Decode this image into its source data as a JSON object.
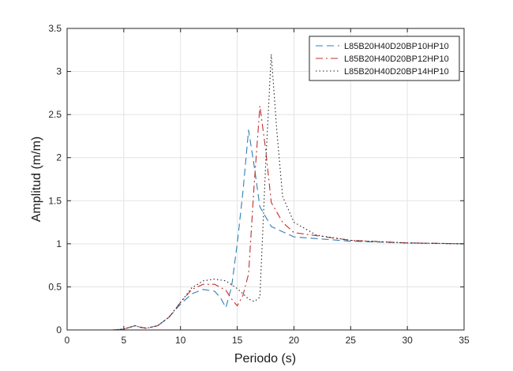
{
  "chart_data": {
    "type": "line",
    "title": "",
    "xlabel": "Periodo (s)",
    "ylabel": "Amplitud (m/m)",
    "xlim": [
      0,
      35
    ],
    "ylim": [
      0,
      3.5
    ],
    "xticks": [
      0,
      5,
      10,
      15,
      20,
      25,
      30,
      35
    ],
    "yticks": [
      0,
      0.5,
      1,
      1.5,
      2,
      2.5,
      3,
      3.5
    ],
    "xtick_labels": [
      "0",
      "5",
      "10",
      "15",
      "20",
      "25",
      "30",
      "35"
    ],
    "ytick_labels": [
      "0",
      "0.5",
      "1",
      "1.5",
      "2",
      "2.5",
      "3",
      "3.5"
    ],
    "grid": true,
    "legend_position": "top-right",
    "series": [
      {
        "name": "L85B20H40D20BP10HP10",
        "color": "#2e7fb8",
        "dash": "dashed",
        "x": [
          2.5,
          4,
          5,
          5.5,
          6,
          6.5,
          7,
          8,
          9,
          10,
          11,
          12,
          13,
          13.5,
          14,
          14.5,
          15,
          15.5,
          16,
          16.5,
          17,
          18,
          20,
          25,
          30,
          35
        ],
        "y": [
          0,
          0,
          0.01,
          0.03,
          0.05,
          0.03,
          0.02,
          0.05,
          0.15,
          0.3,
          0.42,
          0.47,
          0.45,
          0.38,
          0.26,
          0.5,
          1.0,
          1.6,
          2.32,
          1.9,
          1.43,
          1.2,
          1.08,
          1.03,
          1.01,
          1.0
        ]
      },
      {
        "name": "L85B20H40D20BP12HP10",
        "color": "#c42f2f",
        "dash": "dashdot",
        "x": [
          2.5,
          4,
          5,
          5.5,
          6,
          6.5,
          7,
          8,
          9,
          10,
          11,
          12,
          13,
          14,
          14.5,
          15,
          15.5,
          16,
          16.5,
          17,
          17.5,
          18,
          19,
          20,
          25,
          30,
          35
        ],
        "y": [
          0,
          0,
          0.01,
          0.03,
          0.05,
          0.03,
          0.02,
          0.05,
          0.15,
          0.32,
          0.47,
          0.53,
          0.53,
          0.46,
          0.36,
          0.28,
          0.4,
          0.65,
          1.7,
          2.6,
          2.1,
          1.48,
          1.25,
          1.13,
          1.04,
          1.01,
          1.0
        ]
      },
      {
        "name": "L85B20H40D20BP14HP10",
        "color": "#222222",
        "dash": "dotted",
        "x": [
          2.5,
          4,
          5,
          5.5,
          6,
          6.5,
          7,
          8,
          9,
          10,
          11,
          12,
          13,
          14,
          15,
          16,
          16.5,
          17,
          17.5,
          18,
          18.5,
          19,
          20,
          22,
          25,
          30,
          35
        ],
        "y": [
          0,
          0,
          0.01,
          0.03,
          0.05,
          0.03,
          0.02,
          0.05,
          0.15,
          0.32,
          0.49,
          0.57,
          0.59,
          0.57,
          0.48,
          0.36,
          0.33,
          0.38,
          1.9,
          3.2,
          2.3,
          1.55,
          1.25,
          1.1,
          1.04,
          1.01,
          1.0
        ]
      }
    ]
  }
}
